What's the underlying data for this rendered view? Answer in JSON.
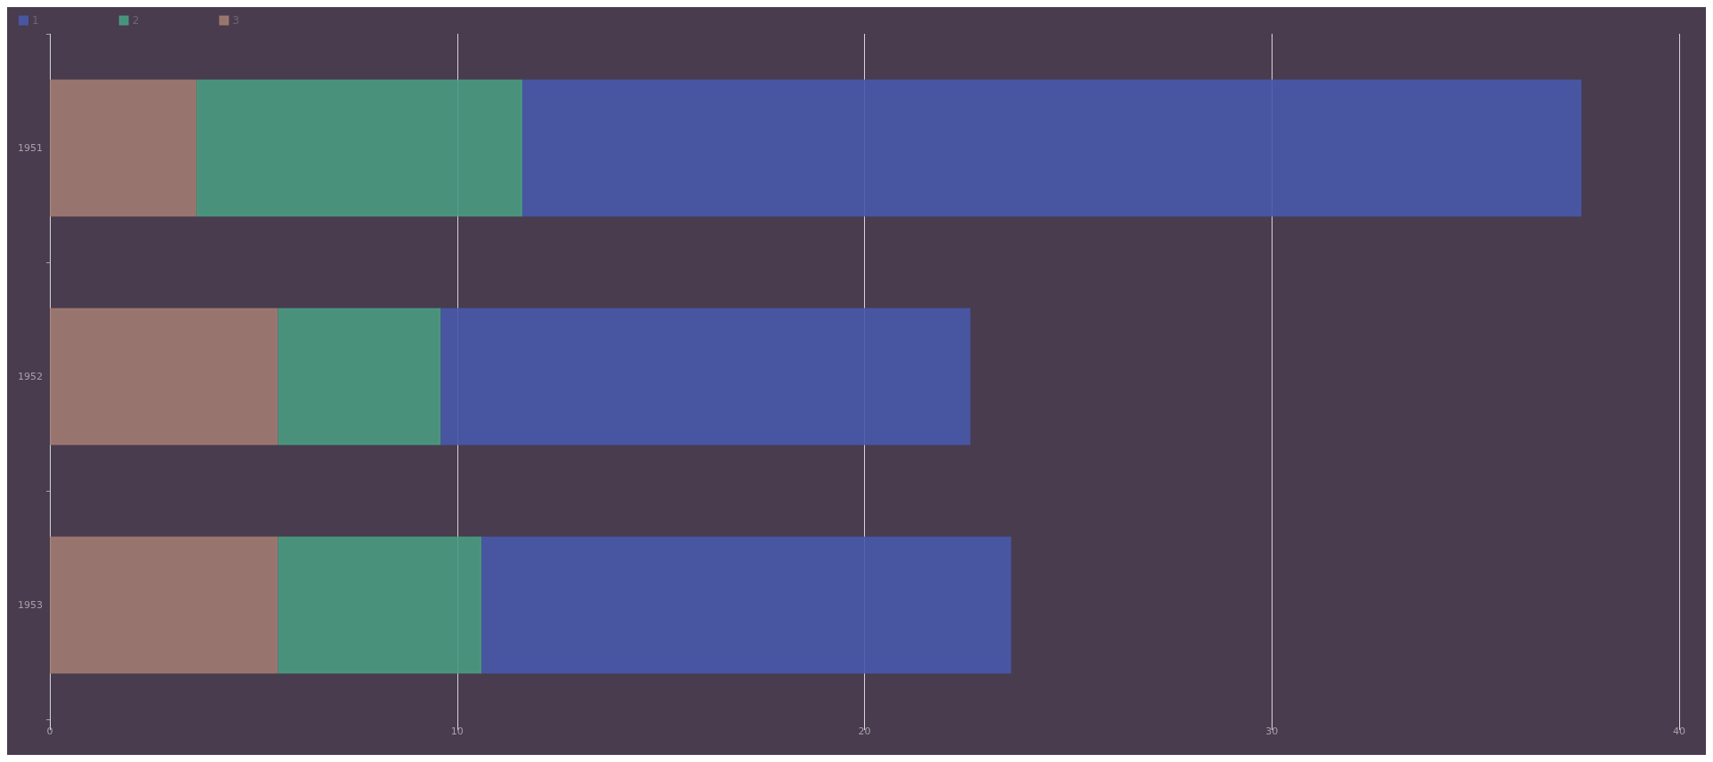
{
  "chart_data": {
    "type": "bar",
    "orientation": "horizontal",
    "stacked": true,
    "categories": [
      "1951",
      "1952",
      "1953"
    ],
    "series": [
      {
        "name": "3",
        "color": "#a07a72",
        "values": [
          3.6,
          5.6,
          5.6
        ]
      },
      {
        "name": "2",
        "color": "#4a9a82",
        "values": [
          8,
          4,
          5
        ]
      },
      {
        "name": "1",
        "color": "#4858aa",
        "values": [
          26,
          13,
          13
        ]
      }
    ],
    "xlim": [
      0,
      40
    ],
    "xticks": [
      0,
      10,
      20,
      30,
      40
    ],
    "grid": "x",
    "legend": "top left"
  }
}
